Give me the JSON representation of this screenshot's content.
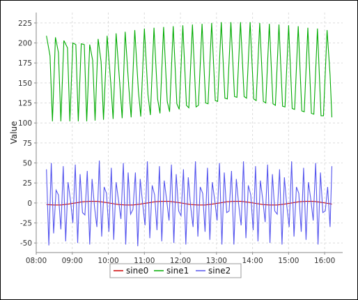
{
  "chart_data": {
    "type": "line",
    "title": "",
    "xlabel": "",
    "ylabel": "Value",
    "x_ticks": [
      "08:00",
      "09:00",
      "10:00",
      "11:00",
      "12:00",
      "13:00",
      "14:00",
      "15:00",
      "16:00"
    ],
    "x_range": [
      "08:00",
      "16:30"
    ],
    "y_ticks": [
      -50,
      -25,
      0,
      25,
      50,
      75,
      100,
      125,
      150,
      175,
      200,
      225
    ],
    "y_range": [
      -62,
      238
    ],
    "grid": true,
    "legend_position": "bottom",
    "series": [
      {
        "name": "sine0",
        "color": "#cc0000",
        "points": [
          {
            "x": "08:17",
            "y": -2.0
          },
          {
            "x": "08:29",
            "y": -2.5
          },
          {
            "x": "08:41",
            "y": -2.5
          },
          {
            "x": "08:53",
            "y": -1.5
          },
          {
            "x": "09:05",
            "y": 0.0
          },
          {
            "x": "09:17",
            "y": 1.5
          },
          {
            "x": "09:29",
            "y": 2.0
          },
          {
            "x": "09:41",
            "y": 2.0
          },
          {
            "x": "09:53",
            "y": 1.0
          },
          {
            "x": "10:05",
            "y": -0.5
          },
          {
            "x": "10:17",
            "y": -2.0
          },
          {
            "x": "10:29",
            "y": -2.5
          },
          {
            "x": "10:41",
            "y": -2.5
          },
          {
            "x": "10:53",
            "y": -1.5
          },
          {
            "x": "11:05",
            "y": 0.0
          },
          {
            "x": "11:17",
            "y": 1.5
          },
          {
            "x": "11:29",
            "y": 2.0
          },
          {
            "x": "11:41",
            "y": 2.0
          },
          {
            "x": "11:53",
            "y": 1.0
          },
          {
            "x": "12:05",
            "y": -0.5
          },
          {
            "x": "12:17",
            "y": -2.0
          },
          {
            "x": "12:29",
            "y": -2.5
          },
          {
            "x": "12:41",
            "y": -2.5
          },
          {
            "x": "12:53",
            "y": -1.5
          },
          {
            "x": "13:05",
            "y": 0.0
          },
          {
            "x": "13:17",
            "y": 1.5
          },
          {
            "x": "13:29",
            "y": 2.0
          },
          {
            "x": "13:41",
            "y": 2.0
          },
          {
            "x": "13:53",
            "y": 1.0
          },
          {
            "x": "14:05",
            "y": -0.5
          },
          {
            "x": "14:17",
            "y": -2.0
          },
          {
            "x": "14:29",
            "y": -2.5
          },
          {
            "x": "14:41",
            "y": -2.5
          },
          {
            "x": "14:53",
            "y": -1.5
          },
          {
            "x": "15:05",
            "y": 0.0
          },
          {
            "x": "15:17",
            "y": 1.5
          },
          {
            "x": "15:29",
            "y": 2.0
          },
          {
            "x": "15:41",
            "y": 2.0
          },
          {
            "x": "15:53",
            "y": 1.0
          },
          {
            "x": "16:05",
            "y": -0.5
          },
          {
            "x": "16:12",
            "y": -1.5
          }
        ]
      },
      {
        "name": "sine1",
        "color": "#00aa00",
        "points": [
          {
            "x": "08:17",
            "y": 209
          },
          {
            "x": "08:23",
            "y": 184
          },
          {
            "x": "08:27",
            "y": 102
          },
          {
            "x": "08:32",
            "y": 207
          },
          {
            "x": "08:37",
            "y": 188
          },
          {
            "x": "08:41",
            "y": 102
          },
          {
            "x": "08:46",
            "y": 203
          },
          {
            "x": "08:52",
            "y": 194
          },
          {
            "x": "08:56",
            "y": 102
          },
          {
            "x": "09:01",
            "y": 200
          },
          {
            "x": "09:06",
            "y": 198
          },
          {
            "x": "09:10",
            "y": 102
          },
          {
            "x": "09:15",
            "y": 199
          },
          {
            "x": "09:20",
            "y": 198
          },
          {
            "x": "09:24",
            "y": 102
          },
          {
            "x": "09:29",
            "y": 198
          },
          {
            "x": "09:34",
            "y": 178
          },
          {
            "x": "09:38",
            "y": 103
          },
          {
            "x": "09:43",
            "y": 205
          },
          {
            "x": "09:48",
            "y": 176
          },
          {
            "x": "09:52",
            "y": 104
          },
          {
            "x": "09:58",
            "y": 209
          },
          {
            "x": "10:04",
            "y": 150
          },
          {
            "x": "10:08",
            "y": 105
          },
          {
            "x": "10:13",
            "y": 212
          },
          {
            "x": "10:19",
            "y": 150
          },
          {
            "x": "10:23",
            "y": 106
          },
          {
            "x": "10:28",
            "y": 214
          },
          {
            "x": "10:34",
            "y": 145
          },
          {
            "x": "10:38",
            "y": 107
          },
          {
            "x": "10:44",
            "y": 216
          },
          {
            "x": "10:50",
            "y": 140
          },
          {
            "x": "10:54",
            "y": 108
          },
          {
            "x": "11:00",
            "y": 218
          },
          {
            "x": "11:06",
            "y": 135
          },
          {
            "x": "11:10",
            "y": 110
          },
          {
            "x": "11:16",
            "y": 219
          },
          {
            "x": "11:22",
            "y": 130
          },
          {
            "x": "11:26",
            "y": 112
          },
          {
            "x": "11:32",
            "y": 220
          },
          {
            "x": "11:38",
            "y": 127
          },
          {
            "x": "11:42",
            "y": 114
          },
          {
            "x": "11:48",
            "y": 221
          },
          {
            "x": "11:54",
            "y": 124
          },
          {
            "x": "11:58",
            "y": 117
          },
          {
            "x": "12:04",
            "y": 222
          },
          {
            "x": "12:10",
            "y": 122
          },
          {
            "x": "12:14",
            "y": 119
          },
          {
            "x": "12:20",
            "y": 223
          },
          {
            "x": "12:26",
            "y": 120
          },
          {
            "x": "12:30",
            "y": 122
          },
          {
            "x": "12:36",
            "y": 224
          },
          {
            "x": "12:42",
            "y": 125
          },
          {
            "x": "12:46",
            "y": 124
          },
          {
            "x": "12:52",
            "y": 225
          },
          {
            "x": "12:58",
            "y": 128
          },
          {
            "x": "13:02",
            "y": 127
          },
          {
            "x": "13:08",
            "y": 226
          },
          {
            "x": "13:14",
            "y": 131
          },
          {
            "x": "13:18",
            "y": 130
          },
          {
            "x": "13:24",
            "y": 226
          },
          {
            "x": "13:30",
            "y": 133
          },
          {
            "x": "13:34",
            "y": 132
          },
          {
            "x": "13:40",
            "y": 226
          },
          {
            "x": "13:46",
            "y": 133
          },
          {
            "x": "13:50",
            "y": 131
          },
          {
            "x": "13:56",
            "y": 226
          },
          {
            "x": "14:02",
            "y": 130
          },
          {
            "x": "14:06",
            "y": 128
          },
          {
            "x": "14:12",
            "y": 225
          },
          {
            "x": "14:18",
            "y": 127
          },
          {
            "x": "14:22",
            "y": 125
          },
          {
            "x": "14:28",
            "y": 224
          },
          {
            "x": "14:34",
            "y": 124
          },
          {
            "x": "14:38",
            "y": 122
          },
          {
            "x": "14:44",
            "y": 223
          },
          {
            "x": "14:50",
            "y": 121
          },
          {
            "x": "14:54",
            "y": 120
          },
          {
            "x": "15:00",
            "y": 222
          },
          {
            "x": "15:06",
            "y": 118
          },
          {
            "x": "15:10",
            "y": 117
          },
          {
            "x": "15:16",
            "y": 221
          },
          {
            "x": "15:22",
            "y": 115
          },
          {
            "x": "15:26",
            "y": 114
          },
          {
            "x": "15:32",
            "y": 219
          },
          {
            "x": "15:38",
            "y": 112
          },
          {
            "x": "15:42",
            "y": 111
          },
          {
            "x": "15:48",
            "y": 218
          },
          {
            "x": "15:54",
            "y": 109
          },
          {
            "x": "15:58",
            "y": 109
          },
          {
            "x": "16:04",
            "y": 216
          },
          {
            "x": "16:09",
            "y": 160
          },
          {
            "x": "16:12",
            "y": 107
          }
        ]
      },
      {
        "name": "sine2",
        "color": "#5555ee",
        "points": [
          {
            "x": "08:17",
            "y": 42
          },
          {
            "x": "08:21",
            "y": -53
          },
          {
            "x": "08:25",
            "y": 50
          },
          {
            "x": "08:29",
            "y": -38
          },
          {
            "x": "08:33",
            "y": 16
          },
          {
            "x": "08:37",
            "y": 10
          },
          {
            "x": "08:41",
            "y": -33
          },
          {
            "x": "08:45",
            "y": 46
          },
          {
            "x": "08:49",
            "y": -48
          },
          {
            "x": "08:53",
            "y": 26
          },
          {
            "x": "08:57",
            "y": 3
          },
          {
            "x": "09:01",
            "y": -25
          },
          {
            "x": "09:05",
            "y": 48
          },
          {
            "x": "09:09",
            "y": -50
          },
          {
            "x": "09:13",
            "y": 36
          },
          {
            "x": "09:17",
            "y": -12
          },
          {
            "x": "09:21",
            "y": -15
          },
          {
            "x": "09:25",
            "y": 40
          },
          {
            "x": "09:29",
            "y": -52
          },
          {
            "x": "09:33",
            "y": 30
          },
          {
            "x": "09:37",
            "y": -5
          },
          {
            "x": "09:41",
            "y": -30
          },
          {
            "x": "09:45",
            "y": 53
          },
          {
            "x": "09:49",
            "y": -42
          },
          {
            "x": "09:53",
            "y": 20
          },
          {
            "x": "09:57",
            "y": 12
          },
          {
            "x": "10:01",
            "y": -36
          },
          {
            "x": "10:05",
            "y": 44
          },
          {
            "x": "10:09",
            "y": -46
          },
          {
            "x": "10:13",
            "y": 26
          },
          {
            "x": "10:17",
            "y": 3
          },
          {
            "x": "10:21",
            "y": -20
          },
          {
            "x": "10:25",
            "y": 50
          },
          {
            "x": "10:29",
            "y": -52
          },
          {
            "x": "10:33",
            "y": 38
          },
          {
            "x": "10:37",
            "y": -14
          },
          {
            "x": "10:41",
            "y": -8
          },
          {
            "x": "10:45",
            "y": 38
          },
          {
            "x": "10:49",
            "y": -54
          },
          {
            "x": "10:53",
            "y": 30
          },
          {
            "x": "10:57",
            "y": 0
          },
          {
            "x": "11:01",
            "y": -28
          },
          {
            "x": "11:05",
            "y": 52
          },
          {
            "x": "11:09",
            "y": -44
          },
          {
            "x": "11:13",
            "y": 22
          },
          {
            "x": "11:17",
            "y": 10
          },
          {
            "x": "11:21",
            "y": -34
          },
          {
            "x": "11:25",
            "y": 46
          },
          {
            "x": "11:29",
            "y": -48
          },
          {
            "x": "11:33",
            "y": 28
          },
          {
            "x": "11:37",
            "y": 4
          },
          {
            "x": "11:41",
            "y": -22
          },
          {
            "x": "11:45",
            "y": 48
          },
          {
            "x": "11:49",
            "y": -50
          },
          {
            "x": "11:53",
            "y": 36
          },
          {
            "x": "11:57",
            "y": -10
          },
          {
            "x": "12:01",
            "y": -16
          },
          {
            "x": "12:05",
            "y": 42
          },
          {
            "x": "12:09",
            "y": -52
          },
          {
            "x": "12:13",
            "y": 32
          },
          {
            "x": "12:17",
            "y": -4
          },
          {
            "x": "12:21",
            "y": -30
          },
          {
            "x": "12:25",
            "y": 52
          },
          {
            "x": "12:29",
            "y": -42
          },
          {
            "x": "12:33",
            "y": 20
          },
          {
            "x": "12:37",
            "y": 12
          },
          {
            "x": "12:41",
            "y": -36
          },
          {
            "x": "12:45",
            "y": 44
          },
          {
            "x": "12:49",
            "y": -46
          },
          {
            "x": "12:53",
            "y": 26
          },
          {
            "x": "12:57",
            "y": 4
          },
          {
            "x": "13:01",
            "y": -22
          },
          {
            "x": "13:05",
            "y": 50
          },
          {
            "x": "13:09",
            "y": -52
          },
          {
            "x": "13:13",
            "y": 38
          },
          {
            "x": "13:17",
            "y": -12
          },
          {
            "x": "13:21",
            "y": -10
          },
          {
            "x": "13:25",
            "y": 40
          },
          {
            "x": "13:29",
            "y": -52
          },
          {
            "x": "13:33",
            "y": 30
          },
          {
            "x": "13:37",
            "y": -2
          },
          {
            "x": "13:41",
            "y": -28
          },
          {
            "x": "13:45",
            "y": 52
          },
          {
            "x": "13:49",
            "y": -44
          },
          {
            "x": "13:53",
            "y": 22
          },
          {
            "x": "13:57",
            "y": 10
          },
          {
            "x": "14:01",
            "y": -34
          },
          {
            "x": "14:05",
            "y": 46
          },
          {
            "x": "14:09",
            "y": -48
          },
          {
            "x": "14:13",
            "y": 28
          },
          {
            "x": "14:17",
            "y": 4
          },
          {
            "x": "14:21",
            "y": -24
          },
          {
            "x": "14:25",
            "y": 48
          },
          {
            "x": "14:29",
            "y": -50
          },
          {
            "x": "14:33",
            "y": 36
          },
          {
            "x": "14:37",
            "y": -10
          },
          {
            "x": "14:41",
            "y": -14
          },
          {
            "x": "14:45",
            "y": 42
          },
          {
            "x": "14:49",
            "y": -52
          },
          {
            "x": "14:53",
            "y": 32
          },
          {
            "x": "14:57",
            "y": -4
          },
          {
            "x": "15:01",
            "y": -30
          },
          {
            "x": "15:05",
            "y": 52
          },
          {
            "x": "15:09",
            "y": -42
          },
          {
            "x": "15:13",
            "y": 20
          },
          {
            "x": "15:17",
            "y": 12
          },
          {
            "x": "15:21",
            "y": -36
          },
          {
            "x": "15:25",
            "y": 44
          },
          {
            "x": "15:29",
            "y": -46
          },
          {
            "x": "15:33",
            "y": 26
          },
          {
            "x": "15:37",
            "y": 4
          },
          {
            "x": "15:41",
            "y": -22
          },
          {
            "x": "15:45",
            "y": 50
          },
          {
            "x": "15:49",
            "y": -52
          },
          {
            "x": "15:53",
            "y": 38
          },
          {
            "x": "15:57",
            "y": -12
          },
          {
            "x": "16:01",
            "y": -10
          },
          {
            "x": "16:05",
            "y": 20
          },
          {
            "x": "16:09",
            "y": -30
          },
          {
            "x": "16:12",
            "y": 46
          }
        ]
      }
    ]
  }
}
